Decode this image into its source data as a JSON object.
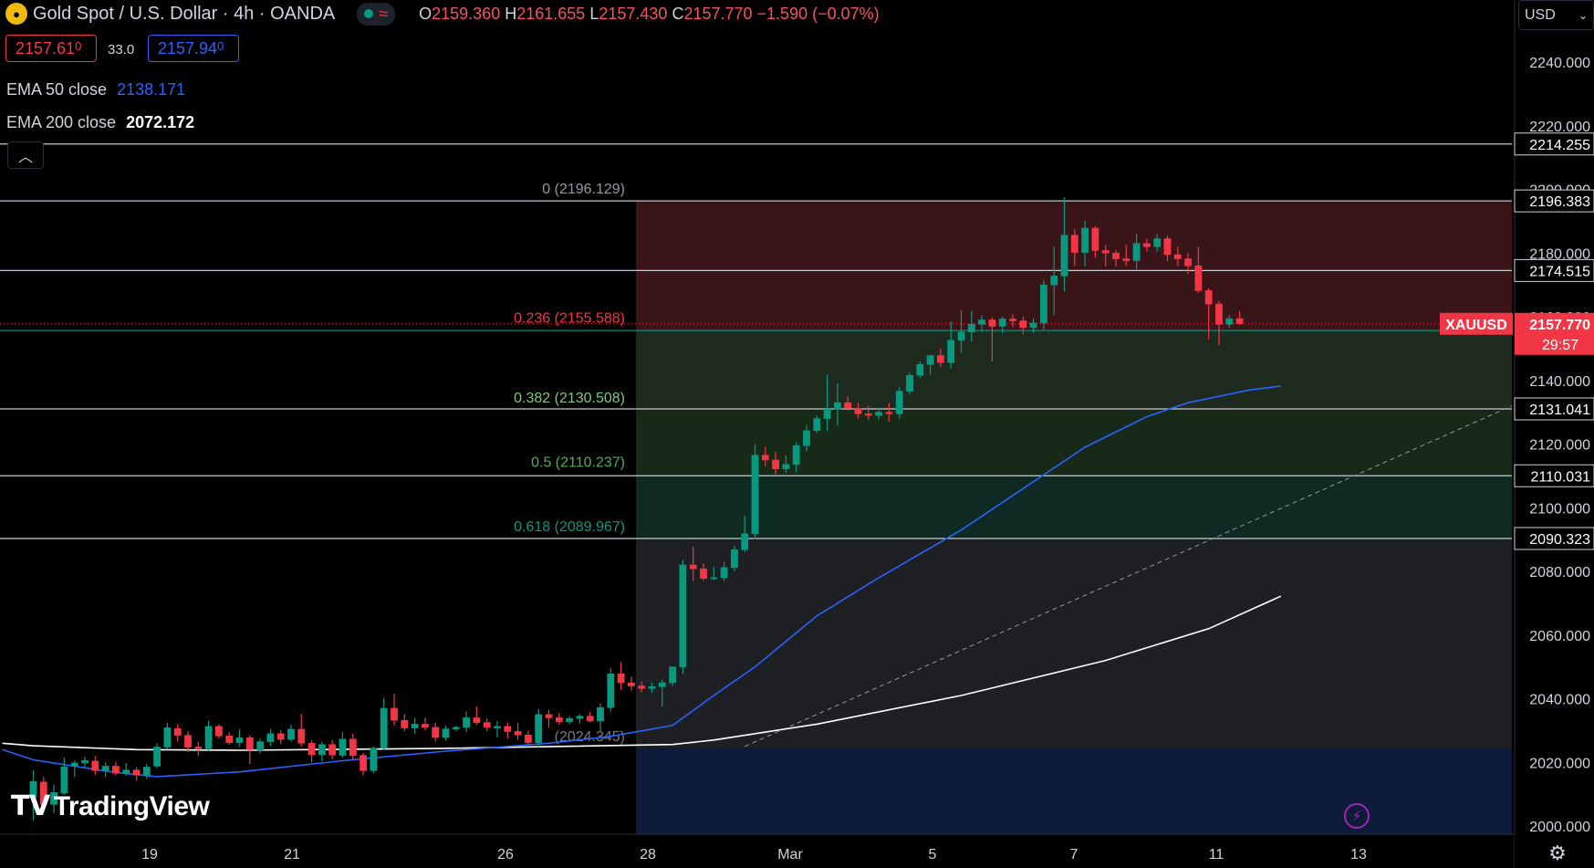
{
  "header": {
    "symbol_title": "Gold Spot / U.S. Dollar · 4h · OANDA",
    "ohlc": {
      "o_label": "O",
      "o": "2159.360",
      "h_label": "H",
      "h": "2161.655",
      "l_label": "L",
      "l": "2157.430",
      "c_label": "C",
      "c": "2157.770",
      "change": "−1.590 (−0.07%)"
    },
    "logo_icon": "gold-coin-icon",
    "status_icon": "market-open-dot-icon",
    "wave_icon": "wave-icon"
  },
  "trade": {
    "sell_price": "2157.61",
    "sell_price_small": "0",
    "spread": "33.0",
    "buy_price": "2157.94",
    "buy_price_small": "0"
  },
  "legend": [
    {
      "label": "EMA 50 close",
      "value": "2138.171",
      "color": "#2962ff"
    },
    {
      "label": "EMA 200 close",
      "value": "2072.172",
      "color": "#ffffff"
    }
  ],
  "currency_selector": {
    "label": "USD"
  },
  "watermark": "TradingView",
  "colors": {
    "up": "#089981",
    "down": "#f23645",
    "ema50": "#2962ff",
    "ema200": "#ffffff",
    "background": "#000000"
  },
  "chart_data": {
    "type": "candlestick",
    "symbol": "XAUUSD",
    "interval": "4h",
    "y_axis": {
      "ticks": [
        "2240.000",
        "2220.000",
        "2200.000",
        "2180.000",
        "2160.000",
        "2140.000",
        "2120.000",
        "2100.000",
        "2080.000",
        "2060.000",
        "2040.000",
        "2020.000",
        "2000.000"
      ],
      "range": [
        1998,
        2253
      ]
    },
    "x_axis": {
      "ticks": [
        "19",
        "21",
        "26",
        "28",
        "Mar",
        "5",
        "7",
        "11",
        "13"
      ]
    },
    "last_price": {
      "symbol": "XAUUSD",
      "price": "2157.770",
      "countdown": "29:57"
    },
    "axis_price_labels": [
      {
        "price": "2214.255",
        "style": "line"
      },
      {
        "price": "2196.383",
        "style": "line"
      },
      {
        "price": "2174.515",
        "style": "line"
      },
      {
        "price": "2155.666",
        "style": "green"
      },
      {
        "price": "2131.041",
        "style": "line"
      },
      {
        "price": "2110.031",
        "style": "line"
      },
      {
        "price": "2090.323",
        "style": "line"
      }
    ],
    "horizontal_lines": [
      2214.255,
      2196.383,
      2174.515,
      2155.666,
      2131.041,
      2110.031,
      2090.323
    ],
    "fibonacci": [
      {
        "ratio": "0",
        "price": "2196.129",
        "label": "0 (2196.129)",
        "color": "#9598a1",
        "fill": "#3a1518"
      },
      {
        "ratio": "0.236",
        "price": "2155.588",
        "label": "0.236 (2155.588)",
        "color": "#f23645",
        "fill": "#1d2a1d"
      },
      {
        "ratio": "0.382",
        "price": "2130.508",
        "label": "0.382 (2130.508)",
        "color": "#81c784",
        "fill": "#172a17"
      },
      {
        "ratio": "0.5",
        "price": "2110.237",
        "label": "0.5 (2110.237)",
        "color": "#4caf50",
        "fill": "#0f2a22"
      },
      {
        "ratio": "0.618",
        "price": "2089.967",
        "label": "0.618 (2089.967)",
        "color": "#089981",
        "fill": "#1e1f22"
      },
      {
        "ratio": "1",
        "price": "2024.345",
        "label": "(2024.345)",
        "color": "#787b86",
        "fill": "#0d1a3a"
      }
    ],
    "candles": [
      {
        "o": 2009.0,
        "h": 2017.5,
        "l": 2001.8,
        "c": 2014.0
      },
      {
        "o": 2013.8,
        "h": 2015.5,
        "l": 2005.0,
        "c": 2006.8
      },
      {
        "o": 2006.8,
        "h": 2013.0,
        "l": 2004.0,
        "c": 2010.5
      },
      {
        "o": 2010.3,
        "h": 2021.5,
        "l": 2009.8,
        "c": 2018.6
      },
      {
        "o": 2018.8,
        "h": 2020.5,
        "l": 2015.5,
        "c": 2019.8
      },
      {
        "o": 2019.8,
        "h": 2021.8,
        "l": 2018.5,
        "c": 2020.6
      },
      {
        "o": 2020.4,
        "h": 2022.0,
        "l": 2016.0,
        "c": 2017.4
      },
      {
        "o": 2017.4,
        "h": 2020.0,
        "l": 2015.5,
        "c": 2018.8
      },
      {
        "o": 2018.8,
        "h": 2020.2,
        "l": 2016.0,
        "c": 2016.6
      },
      {
        "o": 2016.6,
        "h": 2019.8,
        "l": 2015.8,
        "c": 2017.6
      },
      {
        "o": 2017.6,
        "h": 2018.5,
        "l": 2014.2,
        "c": 2016.0
      },
      {
        "o": 2016.0,
        "h": 2019.5,
        "l": 2014.8,
        "c": 2018.5
      },
      {
        "o": 2018.8,
        "h": 2026.0,
        "l": 2018.2,
        "c": 2024.8
      },
      {
        "o": 2024.8,
        "h": 2032.5,
        "l": 2024.0,
        "c": 2030.9
      },
      {
        "o": 2030.6,
        "h": 2032.0,
        "l": 2026.5,
        "c": 2028.5
      },
      {
        "o": 2028.5,
        "h": 2029.8,
        "l": 2023.2,
        "c": 2024.8
      },
      {
        "o": 2024.8,
        "h": 2026.4,
        "l": 2022.0,
        "c": 2024.3
      },
      {
        "o": 2024.3,
        "h": 2033.0,
        "l": 2023.5,
        "c": 2031.3
      },
      {
        "o": 2031.3,
        "h": 2032.0,
        "l": 2027.5,
        "c": 2028.3
      },
      {
        "o": 2028.3,
        "h": 2029.5,
        "l": 2025.5,
        "c": 2026.2
      },
      {
        "o": 2026.2,
        "h": 2030.5,
        "l": 2025.0,
        "c": 2027.7
      },
      {
        "o": 2027.7,
        "h": 2028.5,
        "l": 2019.5,
        "c": 2024.0
      },
      {
        "o": 2023.9,
        "h": 2027.5,
        "l": 2022.8,
        "c": 2026.5
      },
      {
        "o": 2026.5,
        "h": 2030.5,
        "l": 2025.2,
        "c": 2029.0
      },
      {
        "o": 2029.0,
        "h": 2030.2,
        "l": 2025.8,
        "c": 2027.2
      },
      {
        "o": 2027.2,
        "h": 2031.8,
        "l": 2026.5,
        "c": 2030.4
      },
      {
        "o": 2030.4,
        "h": 2035.2,
        "l": 2025.0,
        "c": 2026.0
      },
      {
        "o": 2026.0,
        "h": 2027.0,
        "l": 2020.0,
        "c": 2022.4
      },
      {
        "o": 2022.4,
        "h": 2026.5,
        "l": 2020.2,
        "c": 2025.6
      },
      {
        "o": 2025.6,
        "h": 2027.0,
        "l": 2021.0,
        "c": 2022.3
      },
      {
        "o": 2022.2,
        "h": 2029.5,
        "l": 2021.5,
        "c": 2027.3
      },
      {
        "o": 2027.3,
        "h": 2029.0,
        "l": 2020.8,
        "c": 2022.2
      },
      {
        "o": 2022.2,
        "h": 2023.0,
        "l": 2016.0,
        "c": 2017.4
      },
      {
        "o": 2017.4,
        "h": 2025.0,
        "l": 2016.5,
        "c": 2024.5
      },
      {
        "o": 2024.5,
        "h": 2040.2,
        "l": 2024.0,
        "c": 2037.0
      },
      {
        "o": 2037.0,
        "h": 2041.5,
        "l": 2031.5,
        "c": 2033.2
      },
      {
        "o": 2033.2,
        "h": 2035.2,
        "l": 2029.8,
        "c": 2030.8
      },
      {
        "o": 2030.8,
        "h": 2034.0,
        "l": 2029.0,
        "c": 2032.0
      },
      {
        "o": 2032.0,
        "h": 2034.0,
        "l": 2030.0,
        "c": 2031.0
      },
      {
        "o": 2031.0,
        "h": 2032.5,
        "l": 2026.5,
        "c": 2027.8
      },
      {
        "o": 2027.8,
        "h": 2031.5,
        "l": 2026.8,
        "c": 2030.5
      },
      {
        "o": 2030.5,
        "h": 2031.5,
        "l": 2029.8,
        "c": 2031.0
      },
      {
        "o": 2031.0,
        "h": 2036.0,
        "l": 2029.5,
        "c": 2034.0
      },
      {
        "o": 2034.0,
        "h": 2037.5,
        "l": 2031.8,
        "c": 2032.5
      },
      {
        "o": 2032.5,
        "h": 2033.8,
        "l": 2029.8,
        "c": 2031.0
      },
      {
        "o": 2030.8,
        "h": 2033.0,
        "l": 2027.8,
        "c": 2031.3
      },
      {
        "o": 2031.3,
        "h": 2032.5,
        "l": 2027.5,
        "c": 2029.7
      },
      {
        "o": 2029.7,
        "h": 2032.5,
        "l": 2027.0,
        "c": 2028.6
      },
      {
        "o": 2028.6,
        "h": 2030.0,
        "l": 2025.5,
        "c": 2026.2
      },
      {
        "o": 2026.2,
        "h": 2036.8,
        "l": 2024.8,
        "c": 2035.0
      },
      {
        "o": 2035.0,
        "h": 2036.5,
        "l": 2031.0,
        "c": 2034.0
      },
      {
        "o": 2034.0,
        "h": 2035.5,
        "l": 2031.8,
        "c": 2032.8
      },
      {
        "o": 2032.8,
        "h": 2034.5,
        "l": 2032.0,
        "c": 2033.8
      },
      {
        "o": 2033.8,
        "h": 2035.2,
        "l": 2032.2,
        "c": 2034.5
      },
      {
        "o": 2034.5,
        "h": 2036.0,
        "l": 2032.5,
        "c": 2033.0
      },
      {
        "o": 2033.0,
        "h": 2038.5,
        "l": 2029.8,
        "c": 2037.2
      },
      {
        "o": 2037.2,
        "h": 2049.5,
        "l": 2036.0,
        "c": 2047.8
      },
      {
        "o": 2047.8,
        "h": 2051.5,
        "l": 2042.8,
        "c": 2045.0
      },
      {
        "o": 2045.0,
        "h": 2047.0,
        "l": 2042.5,
        "c": 2044.0
      },
      {
        "o": 2044.0,
        "h": 2045.5,
        "l": 2042.0,
        "c": 2043.2
      },
      {
        "o": 2043.2,
        "h": 2045.0,
        "l": 2041.8,
        "c": 2043.8
      },
      {
        "o": 2043.8,
        "h": 2046.0,
        "l": 2037.5,
        "c": 2045.0
      },
      {
        "o": 2045.0,
        "h": 2050.0,
        "l": 2044.0,
        "c": 2050.0
      },
      {
        "o": 2050.0,
        "h": 2083.5,
        "l": 2047.8,
        "c": 2082.0
      },
      {
        "o": 2082.0,
        "h": 2087.8,
        "l": 2077.0,
        "c": 2080.8
      },
      {
        "o": 2080.8,
        "h": 2082.5,
        "l": 2077.0,
        "c": 2077.8
      },
      {
        "o": 2077.8,
        "h": 2081.5,
        "l": 2077.2,
        "c": 2078.0
      },
      {
        "o": 2078.0,
        "h": 2083.0,
        "l": 2077.0,
        "c": 2081.2
      },
      {
        "o": 2081.2,
        "h": 2088.0,
        "l": 2080.0,
        "c": 2086.8
      },
      {
        "o": 2086.8,
        "h": 2097.5,
        "l": 2086.0,
        "c": 2091.8
      },
      {
        "o": 2091.8,
        "h": 2120.0,
        "l": 2090.2,
        "c": 2116.5
      },
      {
        "o": 2116.5,
        "h": 2119.0,
        "l": 2113.0,
        "c": 2115.0
      },
      {
        "o": 2115.0,
        "h": 2117.5,
        "l": 2110.5,
        "c": 2112.2
      },
      {
        "o": 2112.2,
        "h": 2116.5,
        "l": 2110.8,
        "c": 2113.6
      },
      {
        "o": 2113.6,
        "h": 2120.5,
        "l": 2111.2,
        "c": 2119.5
      },
      {
        "o": 2119.5,
        "h": 2126.0,
        "l": 2117.8,
        "c": 2124.2
      },
      {
        "o": 2124.2,
        "h": 2129.0,
        "l": 2123.5,
        "c": 2128.0
      },
      {
        "o": 2128.0,
        "h": 2141.8,
        "l": 2124.0,
        "c": 2131.0
      },
      {
        "o": 2131.0,
        "h": 2139.0,
        "l": 2125.8,
        "c": 2133.0
      },
      {
        "o": 2133.0,
        "h": 2135.0,
        "l": 2130.5,
        "c": 2131.2
      },
      {
        "o": 2131.2,
        "h": 2133.0,
        "l": 2128.0,
        "c": 2129.5
      },
      {
        "o": 2129.5,
        "h": 2132.0,
        "l": 2127.5,
        "c": 2129.0
      },
      {
        "o": 2129.0,
        "h": 2131.5,
        "l": 2127.8,
        "c": 2130.0
      },
      {
        "o": 2130.0,
        "h": 2132.8,
        "l": 2127.0,
        "c": 2129.5
      },
      {
        "o": 2129.5,
        "h": 2138.0,
        "l": 2128.0,
        "c": 2136.6
      },
      {
        "o": 2136.6,
        "h": 2142.5,
        "l": 2135.6,
        "c": 2141.6
      },
      {
        "o": 2141.6,
        "h": 2146.0,
        "l": 2140.8,
        "c": 2145.0
      },
      {
        "o": 2145.0,
        "h": 2148.0,
        "l": 2141.8,
        "c": 2147.8
      },
      {
        "o": 2147.8,
        "h": 2150.0,
        "l": 2144.2,
        "c": 2145.6
      },
      {
        "o": 2145.6,
        "h": 2158.5,
        "l": 2143.8,
        "c": 2152.6
      },
      {
        "o": 2152.6,
        "h": 2162.0,
        "l": 2148.5,
        "c": 2155.2
      },
      {
        "o": 2155.2,
        "h": 2161.8,
        "l": 2152.2,
        "c": 2157.6
      },
      {
        "o": 2157.6,
        "h": 2160.5,
        "l": 2155.0,
        "c": 2159.0
      },
      {
        "o": 2159.0,
        "h": 2159.8,
        "l": 2146.0,
        "c": 2157.0
      },
      {
        "o": 2157.0,
        "h": 2160.0,
        "l": 2154.8,
        "c": 2159.3
      },
      {
        "o": 2159.3,
        "h": 2160.8,
        "l": 2156.8,
        "c": 2158.7
      },
      {
        "o": 2158.7,
        "h": 2160.0,
        "l": 2154.5,
        "c": 2156.6
      },
      {
        "o": 2156.6,
        "h": 2159.5,
        "l": 2155.0,
        "c": 2158.0
      },
      {
        "o": 2158.0,
        "h": 2171.5,
        "l": 2156.0,
        "c": 2170.0
      },
      {
        "o": 2170.0,
        "h": 2182.0,
        "l": 2160.5,
        "c": 2172.8
      },
      {
        "o": 2172.8,
        "h": 2197.5,
        "l": 2168.0,
        "c": 2185.6
      },
      {
        "o": 2185.6,
        "h": 2187.5,
        "l": 2176.0,
        "c": 2180.2
      },
      {
        "o": 2180.2,
        "h": 2190.2,
        "l": 2175.8,
        "c": 2187.8
      },
      {
        "o": 2187.8,
        "h": 2188.5,
        "l": 2178.5,
        "c": 2180.8
      },
      {
        "o": 2180.8,
        "h": 2182.5,
        "l": 2175.8,
        "c": 2180.0
      },
      {
        "o": 2180.0,
        "h": 2181.0,
        "l": 2175.8,
        "c": 2178.2
      },
      {
        "o": 2178.2,
        "h": 2182.5,
        "l": 2176.0,
        "c": 2177.6
      },
      {
        "o": 2177.6,
        "h": 2186.0,
        "l": 2175.0,
        "c": 2183.0
      },
      {
        "o": 2183.0,
        "h": 2184.5,
        "l": 2180.5,
        "c": 2182.0
      },
      {
        "o": 2182.0,
        "h": 2186.0,
        "l": 2180.5,
        "c": 2184.5
      },
      {
        "o": 2184.5,
        "h": 2185.5,
        "l": 2177.5,
        "c": 2179.5
      },
      {
        "o": 2179.5,
        "h": 2182.0,
        "l": 2176.0,
        "c": 2178.2
      },
      {
        "o": 2178.2,
        "h": 2180.0,
        "l": 2173.5,
        "c": 2176.0
      },
      {
        "o": 2176.0,
        "h": 2182.0,
        "l": 2167.5,
        "c": 2168.2
      },
      {
        "o": 2168.2,
        "h": 2169.0,
        "l": 2153.0,
        "c": 2164.0
      },
      {
        "o": 2164.0,
        "h": 2165.0,
        "l": 2151.0,
        "c": 2157.6
      },
      {
        "o": 2157.6,
        "h": 2160.5,
        "l": 2156.5,
        "c": 2159.4
      },
      {
        "o": 2159.4,
        "h": 2161.7,
        "l": 2157.4,
        "c": 2157.8
      }
    ],
    "ema50": [
      {
        "i": -3,
        "v": 2024.0
      },
      {
        "i": 0,
        "v": 2020.8
      },
      {
        "i": 8,
        "v": 2016.8
      },
      {
        "i": 12,
        "v": 2015.5
      },
      {
        "i": 20,
        "v": 2017.0
      },
      {
        "i": 30,
        "v": 2020.5
      },
      {
        "i": 40,
        "v": 2023.5
      },
      {
        "i": 50,
        "v": 2026.0
      },
      {
        "i": 56,
        "v": 2028.2
      },
      {
        "i": 62,
        "v": 2031.6
      },
      {
        "i": 66,
        "v": 2041.0
      },
      {
        "i": 70,
        "v": 2050.0
      },
      {
        "i": 76,
        "v": 2066.0
      },
      {
        "i": 82,
        "v": 2078.0
      },
      {
        "i": 90,
        "v": 2093.0
      },
      {
        "i": 96,
        "v": 2106.0
      },
      {
        "i": 102,
        "v": 2119.0
      },
      {
        "i": 108,
        "v": 2128.6
      },
      {
        "i": 112,
        "v": 2133.0
      },
      {
        "i": 118,
        "v": 2137.0
      },
      {
        "i": 121,
        "v": 2138.2
      }
    ],
    "ema200": [
      {
        "i": -3,
        "v": 2026.0
      },
      {
        "i": 0,
        "v": 2025.2
      },
      {
        "i": 10,
        "v": 2024.0
      },
      {
        "i": 20,
        "v": 2023.8
      },
      {
        "i": 40,
        "v": 2024.4
      },
      {
        "i": 62,
        "v": 2025.6
      },
      {
        "i": 66,
        "v": 2027.0
      },
      {
        "i": 76,
        "v": 2032.0
      },
      {
        "i": 90,
        "v": 2041.0
      },
      {
        "i": 104,
        "v": 2052.0
      },
      {
        "i": 114,
        "v": 2062.0
      },
      {
        "i": 121,
        "v": 2072.2
      }
    ]
  }
}
